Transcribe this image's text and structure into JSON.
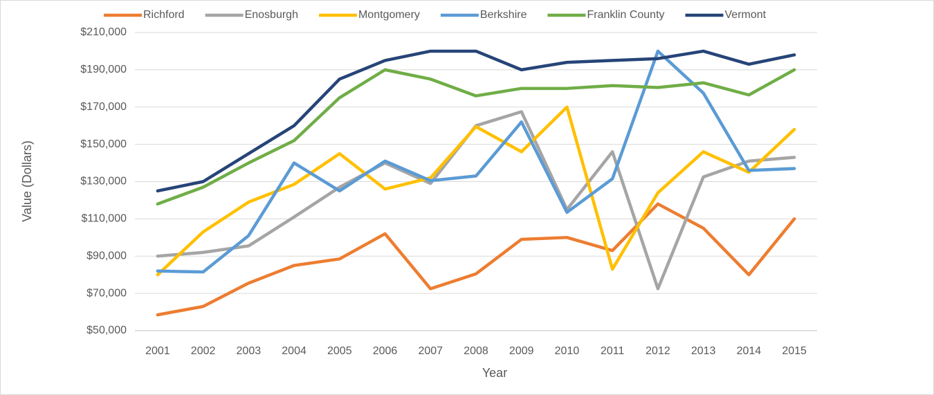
{
  "chart_data": {
    "type": "line",
    "x_label": "Year",
    "y_label": "Value (Dollars)",
    "categories": [
      "2001",
      "2002",
      "2003",
      "2004",
      "2005",
      "2006",
      "2007",
      "2008",
      "2009",
      "2010",
      "2011",
      "2012",
      "2013",
      "2014",
      "2015"
    ],
    "series": [
      {
        "name": "Richford",
        "color": "#ed7d31",
        "values": [
          58500,
          63000,
          75500,
          85000,
          88500,
          102000,
          72500,
          80500,
          99000,
          100000,
          93000,
          118000,
          105000,
          80000,
          110000
        ]
      },
      {
        "name": "Enosburgh",
        "color": "#a5a5a5",
        "values": [
          90000,
          92000,
          95500,
          111000,
          127000,
          140000,
          129000,
          160000,
          167500,
          115000,
          146000,
          72500,
          132500,
          141000,
          143000
        ]
      },
      {
        "name": "Montgomery",
        "color": "#ffc000",
        "values": [
          80000,
          103000,
          119000,
          128500,
          145000,
          126000,
          132000,
          159500,
          146000,
          170000,
          83000,
          124000,
          146000,
          135000,
          158000
        ]
      },
      {
        "name": "Berkshire",
        "color": "#5b9bd5",
        "values": [
          82000,
          81500,
          101000,
          140000,
          125000,
          141000,
          130500,
          133000,
          162000,
          113500,
          131500,
          200000,
          177500,
          136000,
          137000
        ]
      },
      {
        "name": "Franklin County",
        "color": "#70ad47",
        "values": [
          118000,
          127000,
          140000,
          152000,
          175000,
          190000,
          185000,
          176000,
          180000,
          180000,
          181500,
          180500,
          183000,
          176500,
          190000
        ]
      },
      {
        "name": "Vermont",
        "color": "#264478",
        "values": [
          125000,
          130000,
          145000,
          160000,
          185000,
          195000,
          200000,
          200000,
          190000,
          194000,
          195000,
          196000,
          200000,
          193000,
          198000
        ]
      }
    ],
    "ylim": [
      50000,
      210000
    ],
    "yticks": [
      {
        "value": 50000,
        "label": "$50,000"
      },
      {
        "value": 70000,
        "label": "$70,000"
      },
      {
        "value": 90000,
        "label": "$90,000"
      },
      {
        "value": 110000,
        "label": "$110,000"
      },
      {
        "value": 130000,
        "label": "$130,000"
      },
      {
        "value": 150000,
        "label": "$150,000"
      },
      {
        "value": 170000,
        "label": "$170,000"
      },
      {
        "value": 190000,
        "label": "$190,000"
      },
      {
        "value": 210000,
        "label": "$210,000"
      }
    ],
    "grid": true,
    "legend": "top"
  }
}
